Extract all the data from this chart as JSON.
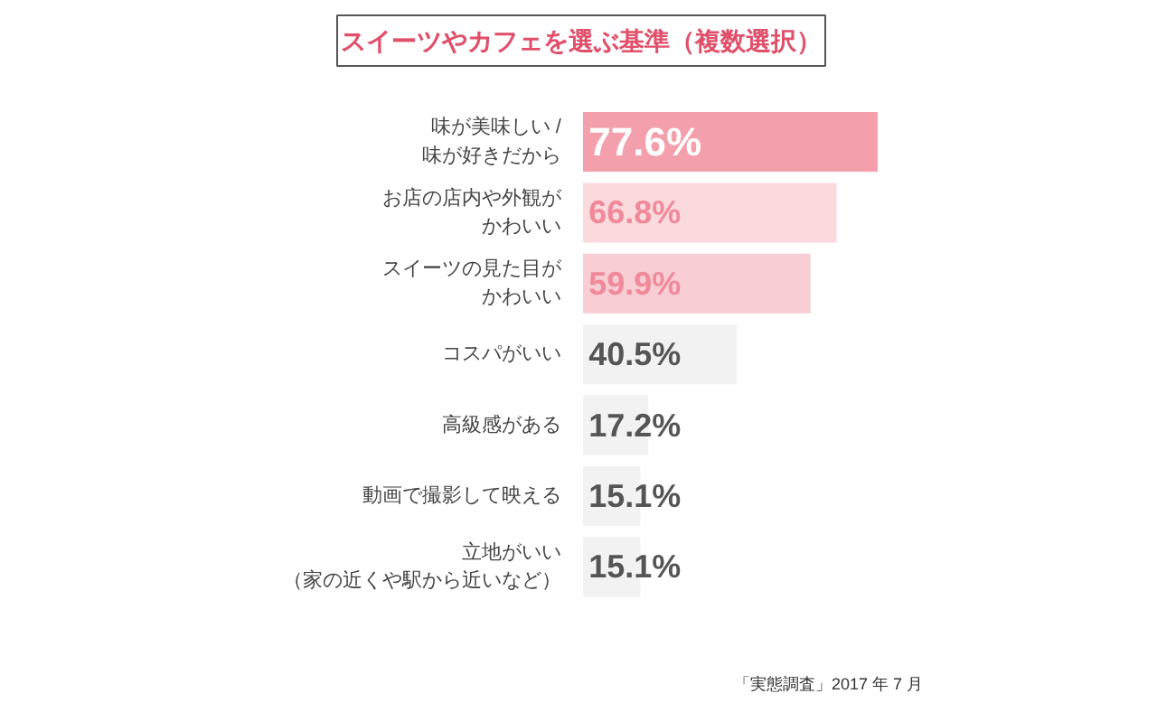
{
  "chart_data": {
    "type": "bar",
    "orientation": "horizontal",
    "title": "スイーツやカフェを選ぶ基準（複数選択）",
    "categories": [
      "味が美味しい /味が好きだから",
      "お店の店内や外観がかわいい",
      "スイーツの見た目がかわいい",
      "コスパがいい",
      "高級感がある",
      "動画で撮影して映える",
      "立地がいい（家の近くや駅から近いなど）"
    ],
    "values": [
      77.6,
      66.8,
      59.9,
      40.5,
      17.2,
      15.1,
      15.1
    ],
    "value_labels": [
      "77.6%",
      "66.8%",
      "59.9%",
      "40.5%",
      "17.2%",
      "15.1%",
      "15.1%"
    ],
    "colors": [
      "#f4a0ac",
      "#fadadd",
      "#f8cdd3",
      "#f2f2f2",
      "#f2f2f2",
      "#f2f2f2",
      "#f2f2f2"
    ],
    "annotations": [
      "「実態調査」2017 年 7 月"
    ]
  }
}
